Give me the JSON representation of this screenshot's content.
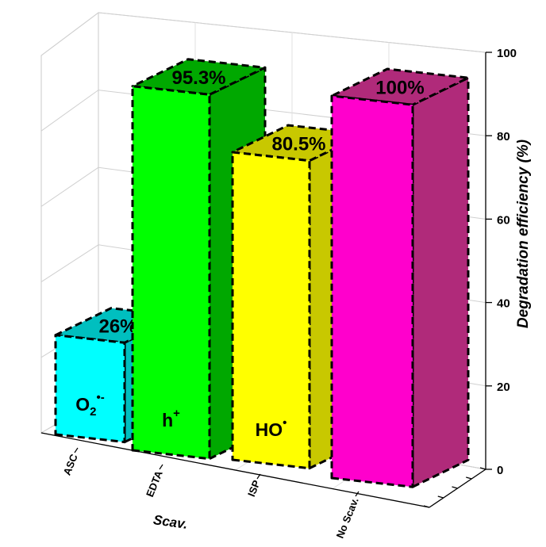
{
  "chart_data": {
    "type": "bar",
    "categories": [
      "ASC",
      "EDTA",
      "ISP",
      "No Scav."
    ],
    "values": [
      26,
      95.3,
      80.5,
      100
    ],
    "data_labels": [
      "26%",
      "95.3%",
      "80.5%",
      "100%"
    ],
    "species": [
      {
        "base": "O",
        "sub": "2",
        "sup": "•-"
      },
      {
        "base": "h",
        "sub": "",
        "sup": "+"
      },
      {
        "base": "HO",
        "sub": "",
        "sup": "•"
      },
      {
        "base": "",
        "sub": "",
        "sup": ""
      }
    ],
    "xlabel": "Scav.",
    "ylabel": "Degradation efficiency (%)",
    "ylim": [
      0,
      100
    ],
    "yticks": [
      "0",
      "20",
      "40",
      "60",
      "80",
      "100"
    ],
    "grid": true,
    "colors": {
      "front": [
        "#00ffff",
        "#00ff00",
        "#ffff00",
        "#ff00cc"
      ],
      "side": [
        "#00bfbf",
        "#00a800",
        "#c8c800",
        "#b02a7a"
      ]
    }
  }
}
